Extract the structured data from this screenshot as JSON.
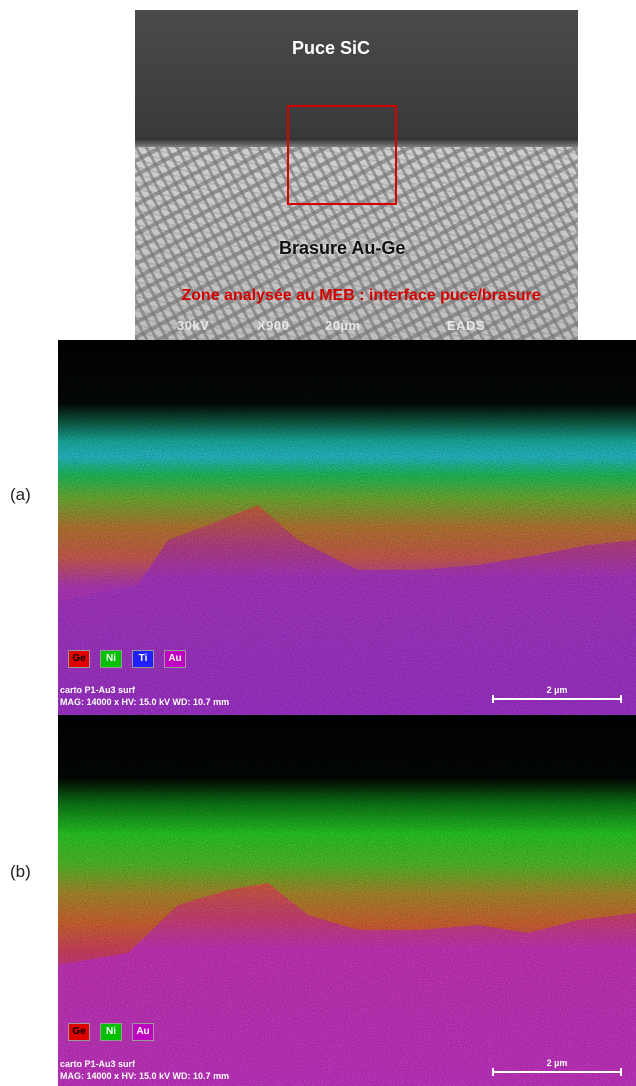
{
  "sem": {
    "chip_label": "Puce SiC",
    "solder_label": "Brasure Au-Ge",
    "caption": "Zone analysée au MEB : interface puce/brasure",
    "bar_kv": "30kV",
    "bar_mag": "X900",
    "bar_scale": "20µm",
    "bar_org": "EADS",
    "box_color": "#d40000"
  },
  "panels": {
    "a": {
      "letter": "(a)",
      "legend": [
        {
          "label": "Ge",
          "color": "#e00000",
          "text_color": "#000000"
        },
        {
          "label": "Ni",
          "color": "#00c000",
          "text_color": "#ffffff"
        },
        {
          "label": "Ti",
          "color": "#2020ff",
          "text_color": "#ffffff"
        },
        {
          "label": "Au",
          "color": "#c000c0",
          "text_color": "#ffffff"
        }
      ],
      "info_line1": "carto P1-Au3 surf",
      "info_line2": "MAG: 14000 x  HV: 15.0 kV  WD: 10.7 mm",
      "scale": "2 µm"
    },
    "b": {
      "letter": "(b)",
      "legend": [
        {
          "label": "Ge",
          "color": "#e00000",
          "text_color": "#000000"
        },
        {
          "label": "Ni",
          "color": "#00c000",
          "text_color": "#ffffff"
        },
        {
          "label": "Au",
          "color": "#c000c0",
          "text_color": "#ffffff"
        }
      ],
      "info_line1": "carto P1-Au3 surf",
      "info_line2": "MAG: 14000 x  HV: 15.0 kV  WD: 10.7 mm",
      "scale": "2 µm"
    }
  }
}
